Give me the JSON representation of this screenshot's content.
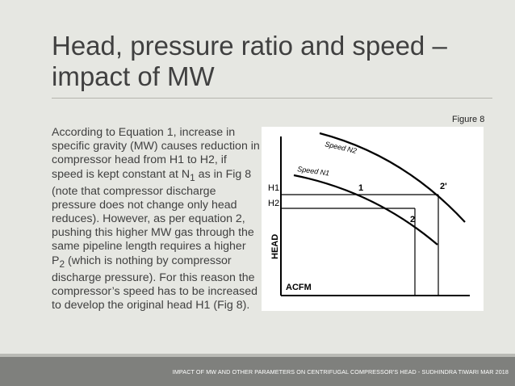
{
  "slide": {
    "title": "Head, pressure ratio and speed – impact of MW",
    "figure_label": "Figure 8",
    "body_parts": [
      "According to Equation 1, increase in specific gravity (MW) causes reduction in compressor head from H1 to H2, if speed is kept constant at N",
      "1",
      "  as in Fig 8 (note that compressor discharge pressure does not change only head reduces). However, as per equation 2, pushing this higher MW gas through the same pipeline length requires a higher P",
      "2",
      " (which is nothing by compressor discharge pressure). For this reason the compressor’s speed has to be increased to develop the original head H1 (Fig 8)."
    ],
    "footer": "IMPACT OF MW AND OTHER PARAMETERS ON CENTRIFUGAL COMPRESSOR'S HEAD - SUDHINDRA TIWARI MAR 2018"
  },
  "diagram": {
    "speed_n2_label": "Speed N2",
    "speed_n1_label": "Speed N1",
    "h1_label": "H1",
    "h2_label": "H2",
    "point_1": "1",
    "point_2": "2",
    "point_2_prime": "2'",
    "y_axis_label": "HEAD",
    "x_axis_label": "ACFM"
  }
}
